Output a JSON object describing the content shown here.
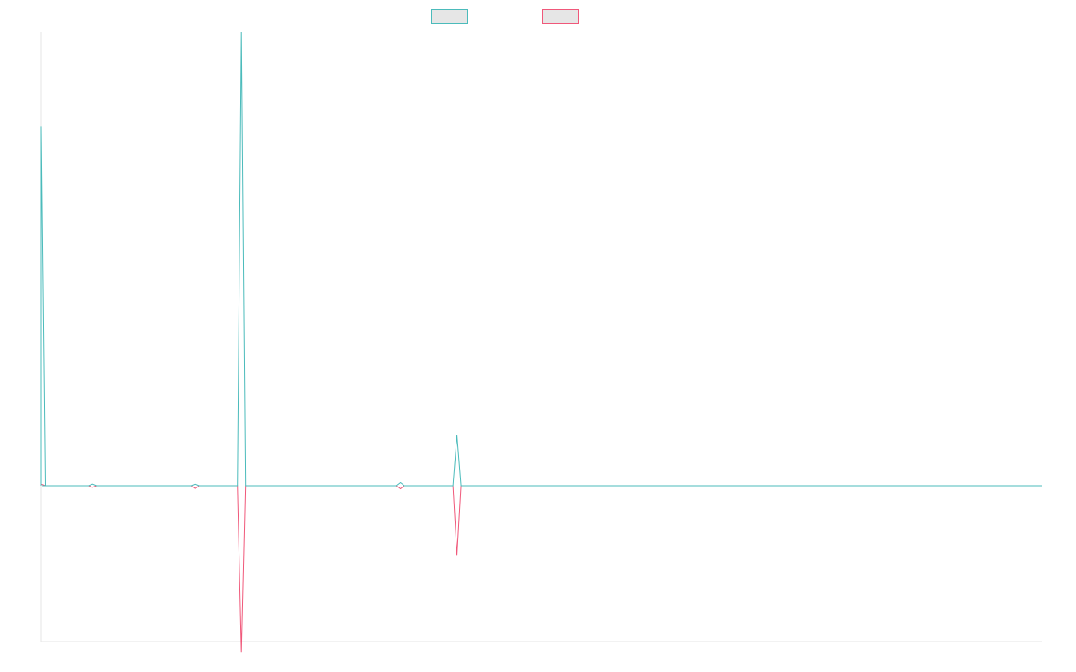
{
  "chart_data": {
    "type": "line",
    "title": "",
    "xlabel": "",
    "ylabel": "",
    "grid": false,
    "legend_position": "top-center",
    "x_count": 195,
    "ylim": [
      -0.6,
      1.4
    ],
    "baseline": 0,
    "series": [
      {
        "color": "#4bbbbb",
        "fill": "#e6e6e6",
        "spikes": [
          {
            "x": 0,
            "y": 1.14
          },
          {
            "x": 1,
            "y": 0
          },
          {
            "x": 10,
            "y": 0.005
          },
          {
            "x": 30,
            "y": 0.005
          },
          {
            "x": 39,
            "y": 1.44
          },
          {
            "x": 70,
            "y": 0.01
          },
          {
            "x": 81,
            "y": 0.16
          }
        ]
      },
      {
        "color": "#f0587a",
        "fill": "#e6e6e6",
        "spikes": [
          {
            "x": 0,
            "y": 0.005
          },
          {
            "x": 10,
            "y": -0.005
          },
          {
            "x": 30,
            "y": -0.01
          },
          {
            "x": 39,
            "y": -0.53
          },
          {
            "x": 70,
            "y": -0.01
          },
          {
            "x": 81,
            "y": -0.22
          }
        ]
      }
    ],
    "colors": {
      "axis": "#e6e6e6"
    }
  }
}
